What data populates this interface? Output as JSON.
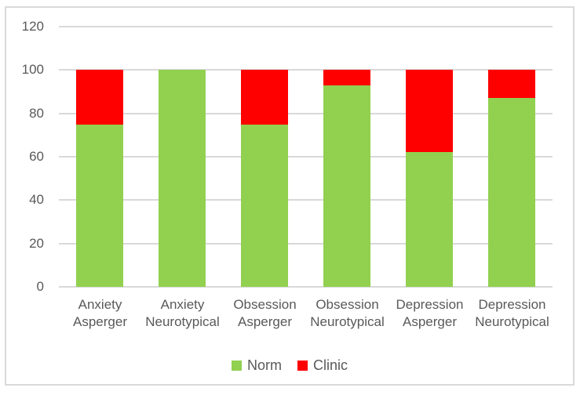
{
  "figure": {
    "background": "#FFFFFF",
    "border_color": "#D9D9D9"
  },
  "chart_data": {
    "type": "bar",
    "stacked": true,
    "title": "",
    "xlabel": "",
    "ylabel": "",
    "categories": [
      "Anxiety Asperger",
      "Anxiety Neurotypical",
      "Obsession Asperger",
      "Obsession Neurotypical",
      "Depression Asperger",
      "Depression Neurotypical"
    ],
    "category_lines": [
      [
        "Anxiety",
        "Asperger"
      ],
      [
        "Anxiety",
        "Neurotypical"
      ],
      [
        "Obsession",
        "Asperger"
      ],
      [
        "Obsession",
        "Neurotypical"
      ],
      [
        "Depression",
        "Asperger"
      ],
      [
        "Depression",
        "Neurotypical"
      ]
    ],
    "series": [
      {
        "name": "Norm",
        "color": "#92D050",
        "values": [
          75,
          100,
          75,
          93,
          62,
          87
        ]
      },
      {
        "name": "Clinic",
        "color": "#FF0000",
        "values": [
          25,
          0,
          25,
          7,
          38,
          13
        ]
      }
    ],
    "ylim": [
      0,
      120
    ],
    "yticks": [
      0,
      20,
      40,
      60,
      80,
      100,
      120
    ],
    "grid": true,
    "gridline_color": "#D9D9D9",
    "axis_text_color": "#595959",
    "legend_position": "bottom"
  }
}
